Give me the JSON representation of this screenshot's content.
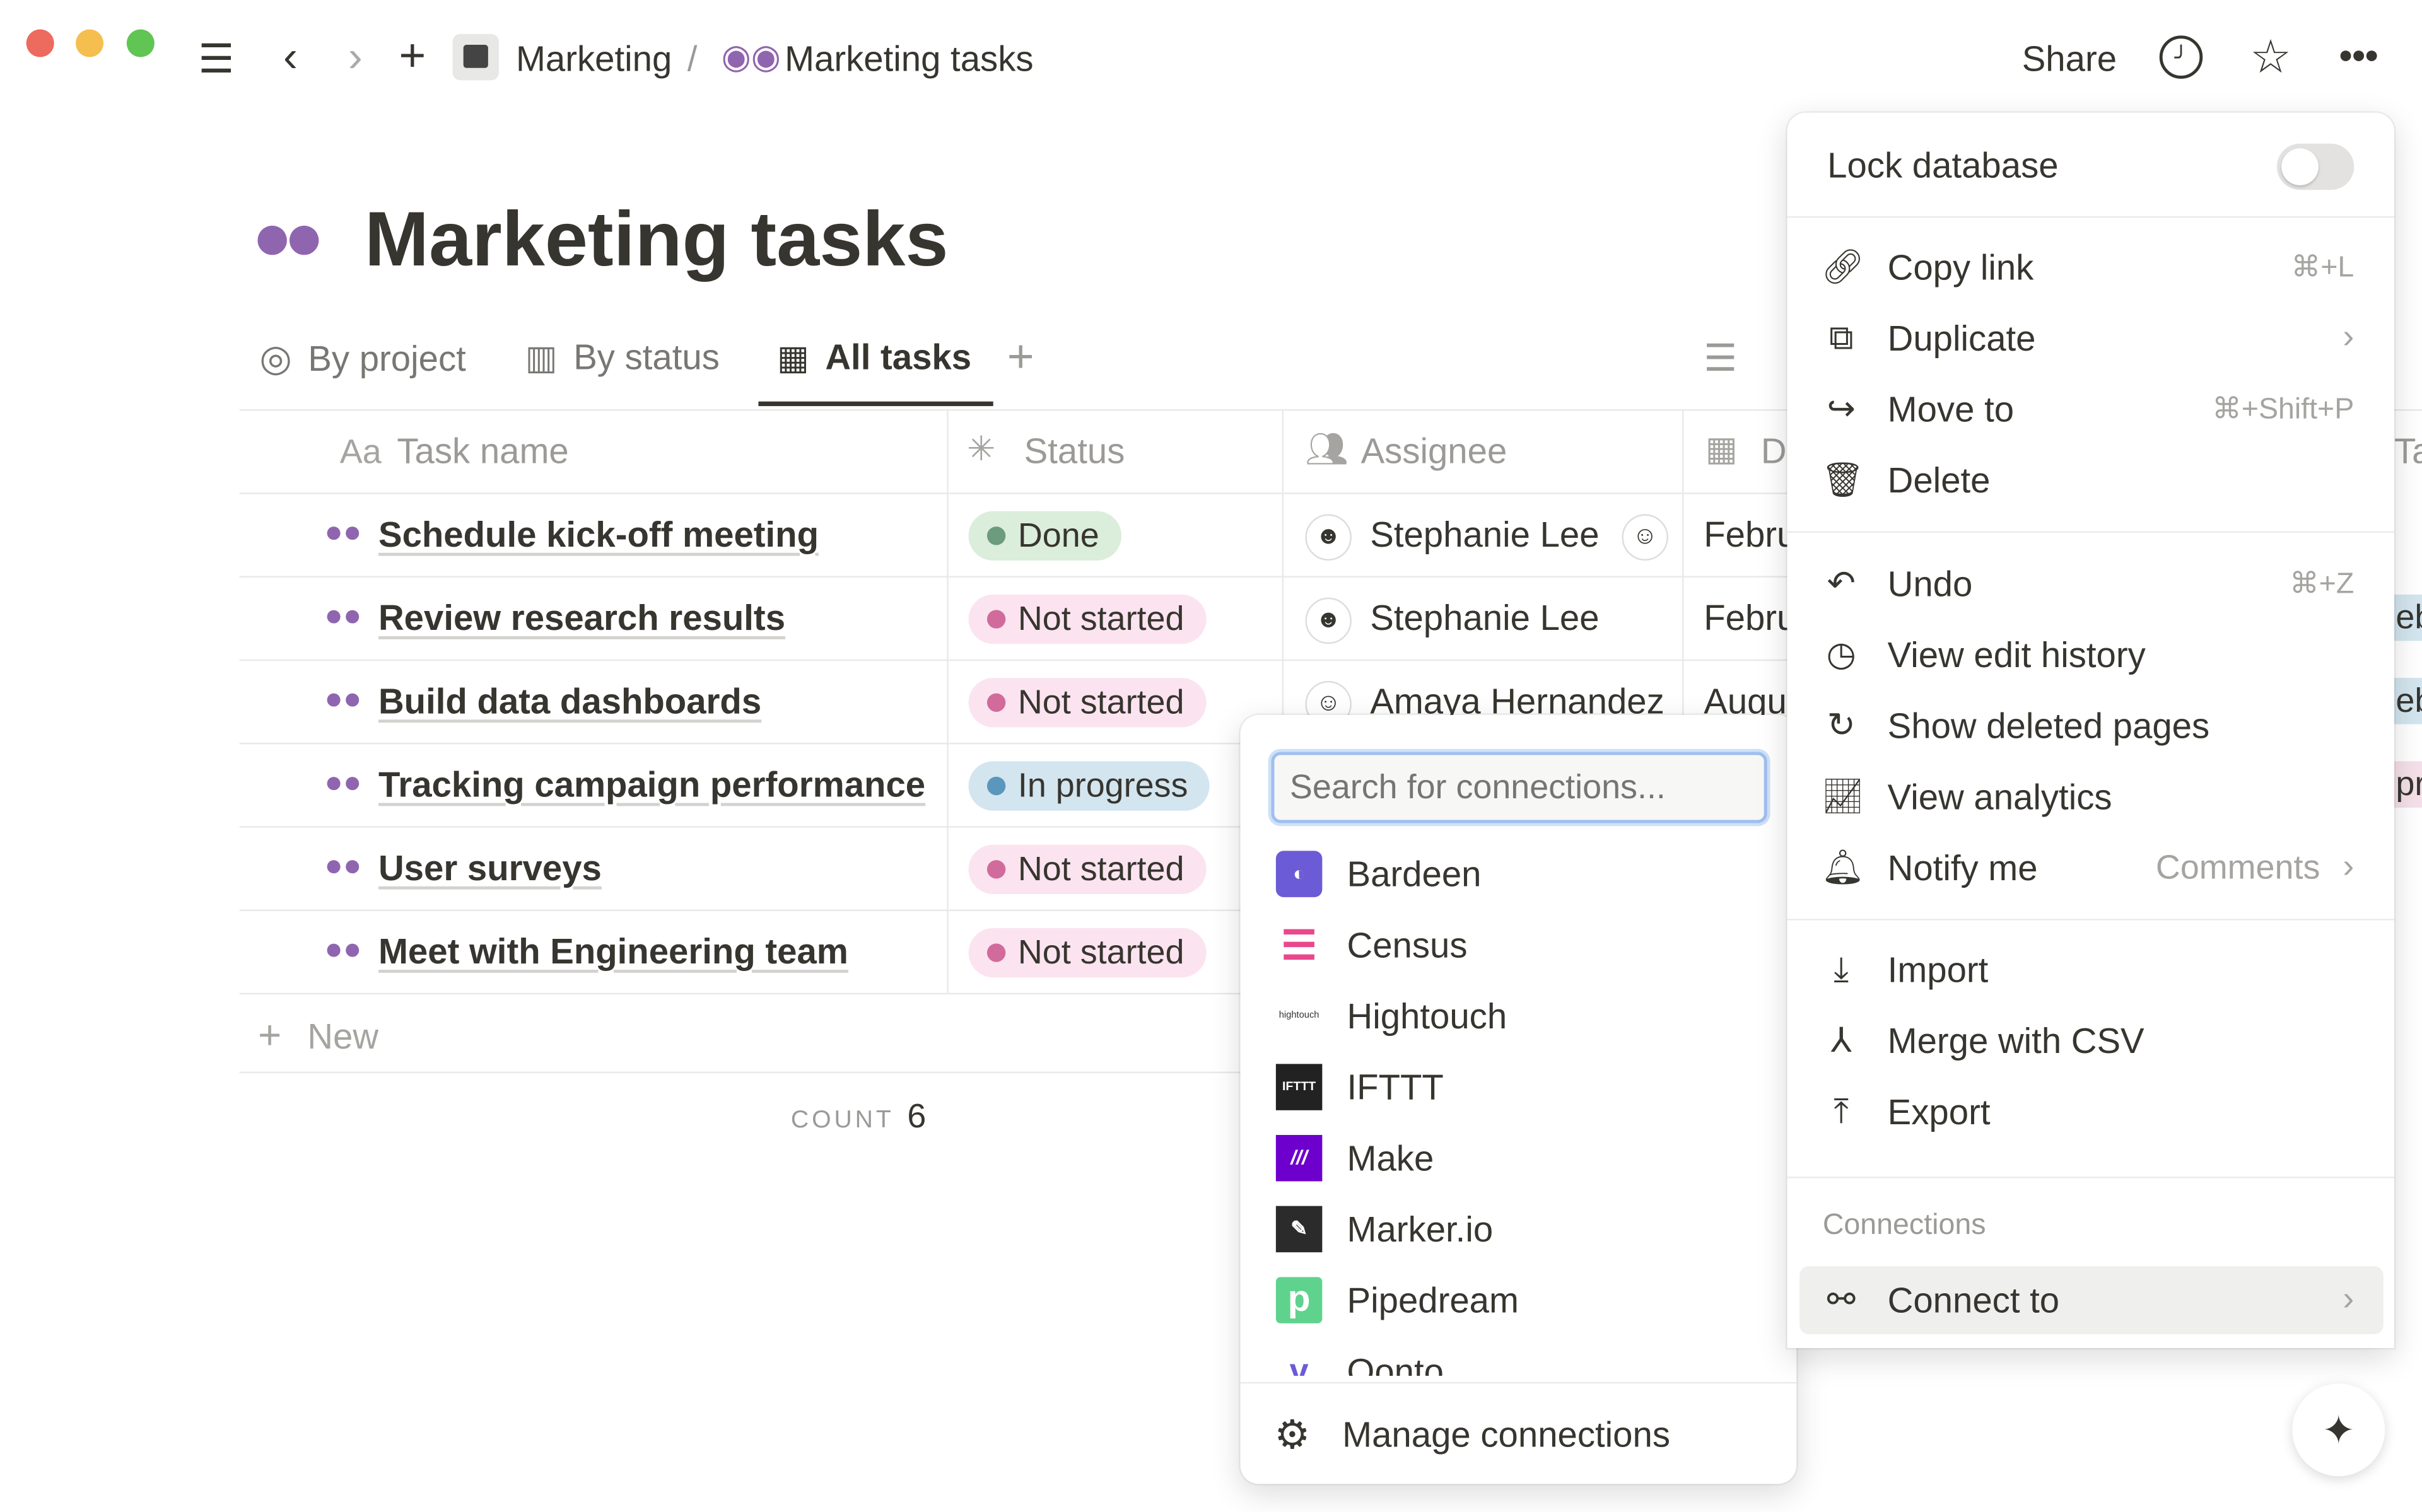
{
  "window": {
    "controls": [
      "close",
      "minimize",
      "maximize"
    ]
  },
  "topbar": {
    "breadcrumb": [
      {
        "label": "Marketing",
        "icon": "clapperboard-icon"
      },
      {
        "separator": "/"
      },
      {
        "label": "Marketing tasks",
        "icon": "binoculars-icon"
      }
    ],
    "share": "Share"
  },
  "page": {
    "title": "Marketing tasks",
    "icon": "binoculars-icon"
  },
  "views": {
    "tabs": [
      {
        "label": "By project",
        "icon": "target-icon"
      },
      {
        "label": "By status",
        "icon": "board-icon"
      },
      {
        "label": "All tasks",
        "icon": "table-icon",
        "active": true
      }
    ],
    "add": "+"
  },
  "table": {
    "columns": [
      {
        "label": "Task name",
        "prefix": "Aa"
      },
      {
        "label": "Status"
      },
      {
        "label": "Assignee"
      },
      {
        "label": "D"
      },
      {
        "label": "Ta"
      }
    ],
    "rows": [
      {
        "task": "Schedule kick-off meeting",
        "status": "Done",
        "status_kind": "done",
        "assignee": "Stephanie Lee",
        "date": "Febru",
        "tag": ""
      },
      {
        "task": "Review research results",
        "status": "Not started",
        "status_kind": "ns",
        "assignee": "Stephanie Lee",
        "date": "Febru",
        "tag": "eb"
      },
      {
        "task": "Build data dashboards",
        "status": "Not started",
        "status_kind": "ns",
        "assignee": "Amaya Hernandez",
        "date": "Augu",
        "tag": "eb"
      },
      {
        "task": "Tracking campaign performance",
        "status": "In progress",
        "status_kind": "ip",
        "assignee": "",
        "date": "",
        "tag": "pr"
      },
      {
        "task": "User surveys",
        "status": "Not started",
        "status_kind": "ns",
        "assignee": "",
        "date": "",
        "tag": ""
      },
      {
        "task": "Meet with Engineering team",
        "status": "Not started",
        "status_kind": "ns",
        "assignee": "",
        "date": "",
        "tag": ""
      }
    ],
    "new_label": "New",
    "count_label": "COUNT",
    "count_value": "6"
  },
  "connections_popup": {
    "search_placeholder": "Search for connections...",
    "items": [
      {
        "label": "Bardeen",
        "color": "#6b5bd6"
      },
      {
        "label": "Census",
        "color": "#e9488c"
      },
      {
        "label": "Hightouch",
        "logo_text": "hightouch"
      },
      {
        "label": "IFTTT",
        "color": "#222222",
        "logo_text": "IFTTT"
      },
      {
        "label": "Make",
        "color": "#6d00cc"
      },
      {
        "label": "Marker.io",
        "color": "#2b2b2b"
      },
      {
        "label": "Pipedream",
        "color": "#5fd38d",
        "logo_text": "p"
      },
      {
        "label": "Qonto"
      }
    ],
    "manage": "Manage connections"
  },
  "menu": {
    "lock_database": "Lock database",
    "lock_on": false,
    "items1": [
      {
        "label": "Copy link",
        "shortcut": "⌘+L",
        "icon": "link-icon"
      },
      {
        "label": "Duplicate",
        "icon": "duplicate-icon",
        "submenu": true
      },
      {
        "label": "Move to",
        "shortcut": "⌘+Shift+P",
        "icon": "move-arrow-icon"
      },
      {
        "label": "Delete",
        "icon": "trash-icon"
      }
    ],
    "items2": [
      {
        "label": "Undo",
        "shortcut": "⌘+Z",
        "icon": "undo-icon"
      },
      {
        "label": "View edit history",
        "icon": "clock-icon"
      },
      {
        "label": "Show deleted pages",
        "icon": "history-icon"
      },
      {
        "label": "View analytics",
        "icon": "chart-icon"
      },
      {
        "label": "Notify me",
        "value": "Comments",
        "icon": "bell-icon",
        "submenu": true
      }
    ],
    "items3": [
      {
        "label": "Import",
        "icon": "import-icon"
      },
      {
        "label": "Merge with CSV",
        "icon": "merge-icon"
      },
      {
        "label": "Export",
        "icon": "export-icon"
      }
    ],
    "connections_header": "Connections",
    "connect_to": "Connect to"
  }
}
